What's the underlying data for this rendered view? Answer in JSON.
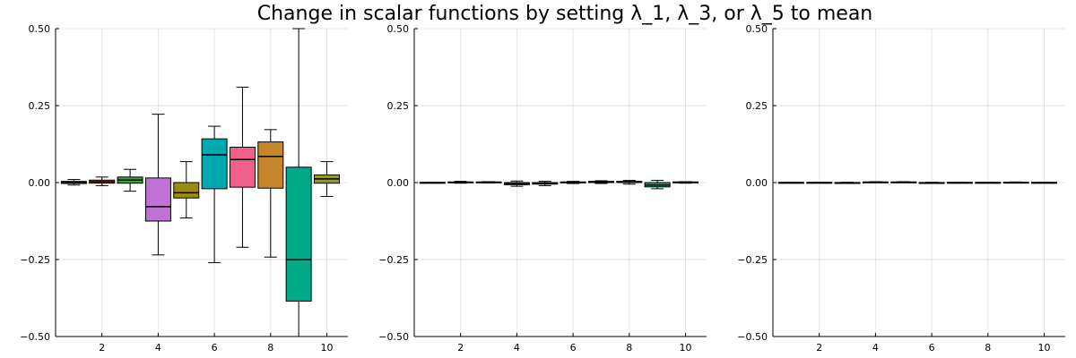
{
  "title": "Change in scalar functions by setting λ_1, λ_3, or λ_5 to mean",
  "colors": [
    "#0097b6",
    "#e0683a",
    "#3ea23a",
    "#c170d6",
    "#9c8b13",
    "#00a8b0",
    "#f0608a",
    "#c8862a",
    "#00aa88",
    "#919a24"
  ],
  "chart_data": [
    {
      "type": "box",
      "categories": [
        1,
        2,
        3,
        4,
        5,
        6,
        7,
        8,
        9,
        10
      ],
      "x_ticks": [
        2,
        4,
        6,
        8,
        10
      ],
      "y_ticks": [
        -0.5,
        -0.25,
        0.0,
        0.25,
        0.5
      ],
      "y_tick_labels": [
        "−0.50",
        "−0.25",
        "0.00",
        "0.25",
        "0.50"
      ],
      "ylim": [
        -0.5,
        0.5
      ],
      "xlim": [
        0.35,
        10.75
      ],
      "boxes": [
        {
          "x": 1,
          "min": -0.008,
          "q1": -0.003,
          "median": 0.0,
          "q3": 0.004,
          "max": 0.01
        },
        {
          "x": 2,
          "min": -0.01,
          "q1": -0.002,
          "median": 0.003,
          "q3": 0.008,
          "max": 0.018
        },
        {
          "x": 3,
          "min": -0.028,
          "q1": -0.002,
          "median": 0.008,
          "q3": 0.018,
          "max": 0.043
        },
        {
          "x": 4,
          "min": -0.235,
          "q1": -0.125,
          "median": -0.078,
          "q3": 0.015,
          "max": 0.222
        },
        {
          "x": 5,
          "min": -0.115,
          "q1": -0.05,
          "median": -0.033,
          "q3": 0.0,
          "max": 0.068
        },
        {
          "x": 6,
          "min": -0.26,
          "q1": -0.02,
          "median": 0.09,
          "q3": 0.142,
          "max": 0.183
        },
        {
          "x": 7,
          "min": -0.21,
          "q1": -0.015,
          "median": 0.075,
          "q3": 0.115,
          "max": 0.31
        },
        {
          "x": 8,
          "min": -0.242,
          "q1": -0.018,
          "median": 0.085,
          "q3": 0.132,
          "max": 0.172
        },
        {
          "x": 9,
          "min": -0.5,
          "q1": -0.385,
          "median": -0.25,
          "q3": 0.05,
          "max": 0.5
        },
        {
          "x": 10,
          "min": -0.045,
          "q1": -0.002,
          "median": 0.012,
          "q3": 0.025,
          "max": 0.068
        }
      ]
    },
    {
      "type": "box",
      "categories": [
        1,
        2,
        3,
        4,
        5,
        6,
        7,
        8,
        9,
        10
      ],
      "x_ticks": [
        2,
        4,
        6,
        8,
        10
      ],
      "y_ticks": [
        -0.5,
        -0.25,
        0.0,
        0.25,
        0.5
      ],
      "y_tick_labels": [
        "−0.50",
        "−0.25",
        "0.00",
        "0.25",
        "0.50"
      ],
      "ylim": [
        -0.5,
        0.5
      ],
      "xlim": [
        0.35,
        10.75
      ],
      "boxes": [
        {
          "x": 1,
          "min": -0.001,
          "q1": -0.0005,
          "median": 0.0,
          "q3": 0.0005,
          "max": 0.001
        },
        {
          "x": 2,
          "min": -0.002,
          "q1": 0.0,
          "median": 0.001,
          "q3": 0.002,
          "max": 0.004
        },
        {
          "x": 3,
          "min": -0.001,
          "q1": 0.0,
          "median": 0.001,
          "q3": 0.002,
          "max": 0.003
        },
        {
          "x": 4,
          "min": -0.012,
          "q1": -0.007,
          "median": -0.003,
          "q3": 0.0,
          "max": 0.005
        },
        {
          "x": 5,
          "min": -0.01,
          "q1": -0.005,
          "median": -0.002,
          "q3": 0.0,
          "max": 0.004
        },
        {
          "x": 6,
          "min": -0.003,
          "q1": -0.001,
          "median": 0.001,
          "q3": 0.002,
          "max": 0.004
        },
        {
          "x": 7,
          "min": -0.003,
          "q1": 0.0,
          "median": 0.002,
          "q3": 0.004,
          "max": 0.006
        },
        {
          "x": 8,
          "min": -0.005,
          "q1": 0.0,
          "median": 0.002,
          "q3": 0.004,
          "max": 0.007
        },
        {
          "x": 9,
          "min": -0.02,
          "q1": -0.014,
          "median": -0.008,
          "q3": 0.0,
          "max": 0.007
        },
        {
          "x": 10,
          "min": -0.002,
          "q1": 0.0,
          "median": 0.001,
          "q3": 0.002,
          "max": 0.003
        }
      ]
    },
    {
      "type": "box",
      "categories": [
        1,
        2,
        3,
        4,
        5,
        6,
        7,
        8,
        9,
        10
      ],
      "x_ticks": [
        2,
        4,
        6,
        8,
        10
      ],
      "y_ticks": [
        -0.5,
        -0.25,
        0.0,
        0.25,
        0.5
      ],
      "y_tick_labels": [
        "−0.50",
        "−0.25",
        "0.00",
        "0.25",
        "0.50"
      ],
      "ylim": [
        -0.5,
        0.5
      ],
      "xlim": [
        0.35,
        10.75
      ],
      "boxes": [
        {
          "x": 1,
          "min": -0.001,
          "q1": 0.0,
          "median": 0.0,
          "q3": 0.0005,
          "max": 0.001
        },
        {
          "x": 2,
          "min": -0.001,
          "q1": -0.0005,
          "median": 0.0,
          "q3": 0.0005,
          "max": 0.001
        },
        {
          "x": 3,
          "min": -0.002,
          "q1": -0.001,
          "median": -0.0005,
          "q3": 0.0,
          "max": 0.001
        },
        {
          "x": 4,
          "min": 0.0,
          "q1": 0.0005,
          "median": 0.001,
          "q3": 0.002,
          "max": 0.003
        },
        {
          "x": 5,
          "min": 0.0,
          "q1": 0.0005,
          "median": 0.001,
          "q3": 0.002,
          "max": 0.003
        },
        {
          "x": 6,
          "min": -0.002,
          "q1": -0.001,
          "median": -0.0005,
          "q3": 0.0,
          "max": 0.001
        },
        {
          "x": 7,
          "min": -0.001,
          "q1": 0.0,
          "median": 0.0,
          "q3": 0.0005,
          "max": 0.001
        },
        {
          "x": 8,
          "min": -0.001,
          "q1": 0.0,
          "median": 0.0,
          "q3": 0.0005,
          "max": 0.001
        },
        {
          "x": 9,
          "min": 0.0,
          "q1": 0.0,
          "median": 0.0005,
          "q3": 0.001,
          "max": 0.002
        },
        {
          "x": 10,
          "min": -0.001,
          "q1": -0.0005,
          "median": 0.0,
          "q3": 0.0005,
          "max": 0.001
        }
      ]
    }
  ]
}
